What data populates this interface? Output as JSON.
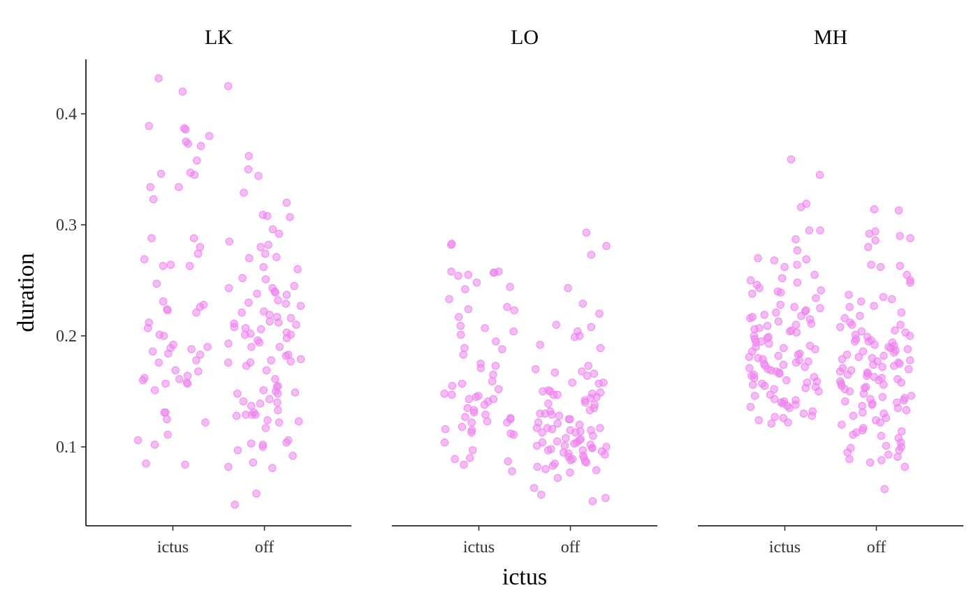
{
  "chart_data": {
    "type": "scatter",
    "xlabel": "ictus",
    "ylabel": "duration",
    "y_ticks": [
      0.1,
      0.2,
      0.3,
      0.4
    ],
    "ylim": [
      0.03,
      0.45
    ],
    "categories": [
      "ictus",
      "off"
    ],
    "grid": false,
    "point_color": "#EE82EE",
    "jitter_halfwidth": 0.4,
    "facets": [
      {
        "name": "LK",
        "series": [
          {
            "category": "ictus",
            "y": [
              0.387,
              0.432,
              0.42,
              0.38,
              0.375,
              0.386,
              0.389,
              0.371,
              0.373,
              0.358,
              0.347,
              0.346,
              0.345,
              0.334,
              0.334,
              0.323,
              0.288,
              0.288,
              0.28,
              0.274,
              0.269,
              0.264,
              0.263,
              0.263,
              0.247,
              0.231,
              0.228,
              0.226,
              0.224,
              0.223,
              0.221,
              0.212,
              0.207,
              0.201,
              0.2,
              0.192,
              0.19,
              0.189,
              0.188,
              0.186,
              0.184,
              0.183,
              0.178,
              0.176,
              0.169,
              0.168,
              0.164,
              0.162,
              0.161,
              0.16,
              0.158,
              0.157,
              0.157,
              0.151,
              0.131,
              0.131,
              0.125,
              0.122,
              0.111,
              0.106,
              0.102,
              0.085,
              0.084
            ]
          },
          {
            "category": "off",
            "y": [
              0.425,
              0.362,
              0.35,
              0.344,
              0.329,
              0.32,
              0.309,
              0.308,
              0.307,
              0.296,
              0.292,
              0.285,
              0.282,
              0.28,
              0.274,
              0.271,
              0.27,
              0.262,
              0.26,
              0.252,
              0.251,
              0.245,
              0.243,
              0.243,
              0.24,
              0.239,
              0.238,
              0.237,
              0.232,
              0.23,
              0.229,
              0.227,
              0.222,
              0.221,
              0.219,
              0.217,
              0.216,
              0.213,
              0.212,
              0.211,
              0.21,
              0.208,
              0.207,
              0.206,
              0.203,
              0.202,
              0.201,
              0.201,
              0.198,
              0.196,
              0.194,
              0.193,
              0.19,
              0.19,
              0.183,
              0.182,
              0.179,
              0.178,
              0.177,
              0.176,
              0.176,
              0.173,
              0.169,
              0.161,
              0.155,
              0.154,
              0.151,
              0.15,
              0.149,
              0.148,
              0.148,
              0.143,
              0.141,
              0.14,
              0.139,
              0.137,
              0.133,
              0.131,
              0.129,
              0.129,
              0.129,
              0.128,
              0.124,
              0.123,
              0.122,
              0.117,
              0.106,
              0.104,
              0.103,
              0.102,
              0.1,
              0.097,
              0.092,
              0.086,
              0.082,
              0.081,
              0.058,
              0.048
            ]
          }
        ]
      },
      {
        "name": "LO",
        "series": [
          {
            "category": "ictus",
            "y": [
              0.283,
              0.282,
              0.258,
              0.258,
              0.257,
              0.257,
              0.255,
              0.254,
              0.248,
              0.244,
              0.242,
              0.233,
              0.226,
              0.224,
              0.223,
              0.217,
              0.209,
              0.207,
              0.204,
              0.201,
              0.195,
              0.189,
              0.188,
              0.183,
              0.175,
              0.173,
              0.171,
              0.165,
              0.159,
              0.157,
              0.155,
              0.152,
              0.148,
              0.147,
              0.146,
              0.145,
              0.143,
              0.143,
              0.141,
              0.138,
              0.135,
              0.133,
              0.131,
              0.129,
              0.127,
              0.126,
              0.125,
              0.123,
              0.122,
              0.122,
              0.118,
              0.116,
              0.115,
              0.113,
              0.112,
              0.111,
              0.104,
              0.097,
              0.09,
              0.089,
              0.087,
              0.084,
              0.078
            ]
          },
          {
            "category": "off",
            "y": [
              0.293,
              0.281,
              0.273,
              0.243,
              0.229,
              0.22,
              0.21,
              0.208,
              0.204,
              0.2,
              0.199,
              0.192,
              0.189,
              0.173,
              0.17,
              0.168,
              0.167,
              0.166,
              0.164,
              0.158,
              0.158,
              0.157,
              0.151,
              0.15,
              0.15,
              0.149,
              0.148,
              0.147,
              0.147,
              0.145,
              0.144,
              0.142,
              0.14,
              0.139,
              0.138,
              0.135,
              0.133,
              0.132,
              0.13,
              0.13,
              0.129,
              0.128,
              0.125,
              0.125,
              0.122,
              0.121,
              0.12,
              0.117,
              0.117,
              0.117,
              0.116,
              0.115,
              0.115,
              0.114,
              0.113,
              0.113,
              0.11,
              0.108,
              0.107,
              0.106,
              0.105,
              0.104,
              0.104,
              0.103,
              0.102,
              0.101,
              0.101,
              0.1,
              0.099,
              0.099,
              0.098,
              0.097,
              0.097,
              0.096,
              0.095,
              0.094,
              0.093,
              0.092,
              0.091,
              0.09,
              0.089,
              0.088,
              0.087,
              0.086,
              0.085,
              0.083,
              0.082,
              0.08,
              0.079,
              0.077,
              0.072,
              0.063,
              0.057,
              0.054,
              0.051
            ]
          }
        ]
      },
      {
        "name": "MH",
        "series": [
          {
            "category": "ictus",
            "y": [
              0.359,
              0.345,
              0.319,
              0.316,
              0.295,
              0.295,
              0.287,
              0.277,
              0.27,
              0.269,
              0.268,
              0.264,
              0.262,
              0.255,
              0.252,
              0.25,
              0.248,
              0.246,
              0.243,
              0.241,
              0.24,
              0.239,
              0.238,
              0.234,
              0.228,
              0.226,
              0.225,
              0.223,
              0.222,
              0.221,
              0.219,
              0.218,
              0.217,
              0.216,
              0.215,
              0.213,
              0.211,
              0.21,
              0.209,
              0.207,
              0.206,
              0.205,
              0.204,
              0.203,
              0.2,
              0.199,
              0.198,
              0.197,
              0.195,
              0.194,
              0.193,
              0.191,
              0.19,
              0.189,
              0.188,
              0.186,
              0.184,
              0.183,
              0.182,
              0.181,
              0.18,
              0.179,
              0.178,
              0.177,
              0.176,
              0.175,
              0.174,
              0.173,
              0.172,
              0.171,
              0.17,
              0.169,
              0.168,
              0.167,
              0.166,
              0.165,
              0.164,
              0.163,
              0.162,
              0.16,
              0.159,
              0.158,
              0.157,
              0.156,
              0.155,
              0.154,
              0.153,
              0.152,
              0.15,
              0.147,
              0.146,
              0.143,
              0.142,
              0.141,
              0.14,
              0.139,
              0.138,
              0.137,
              0.136,
              0.135,
              0.132,
              0.13,
              0.128,
              0.127,
              0.126,
              0.124,
              0.122,
              0.121
            ]
          },
          {
            "category": "off",
            "y": [
              0.314,
              0.313,
              0.294,
              0.292,
              0.29,
              0.288,
              0.286,
              0.28,
              0.264,
              0.263,
              0.262,
              0.255,
              0.25,
              0.248,
              0.237,
              0.235,
              0.233,
              0.231,
              0.227,
              0.226,
              0.221,
              0.218,
              0.216,
              0.212,
              0.21,
              0.21,
              0.208,
              0.205,
              0.204,
              0.203,
              0.201,
              0.2,
              0.199,
              0.197,
              0.196,
              0.195,
              0.195,
              0.194,
              0.192,
              0.191,
              0.19,
              0.189,
              0.188,
              0.187,
              0.186,
              0.185,
              0.183,
              0.182,
              0.181,
              0.18,
              0.179,
              0.178,
              0.177,
              0.176,
              0.175,
              0.174,
              0.173,
              0.172,
              0.171,
              0.17,
              0.169,
              0.168,
              0.167,
              0.166,
              0.165,
              0.164,
              0.163,
              0.162,
              0.161,
              0.16,
              0.159,
              0.158,
              0.157,
              0.156,
              0.155,
              0.154,
              0.153,
              0.152,
              0.15,
              0.148,
              0.146,
              0.145,
              0.144,
              0.143,
              0.142,
              0.141,
              0.14,
              0.139,
              0.138,
              0.137,
              0.135,
              0.133,
              0.131,
              0.13,
              0.128,
              0.126,
              0.124,
              0.122,
              0.12,
              0.117,
              0.115,
              0.114,
              0.113,
              0.111,
              0.11,
              0.108,
              0.104,
              0.101,
              0.1,
              0.099,
              0.097,
              0.095,
              0.093,
              0.091,
              0.089,
              0.088,
              0.086,
              0.082,
              0.062
            ]
          }
        ]
      }
    ]
  }
}
